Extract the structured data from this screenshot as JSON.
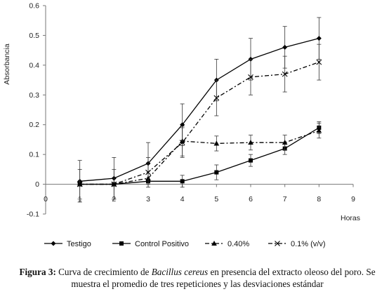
{
  "chart_data": {
    "type": "line",
    "ylabel": "Absorbancia",
    "xlabel": "Horas",
    "xlim": [
      0,
      9
    ],
    "ylim": [
      -0.1,
      0.6
    ],
    "x_ticks": [
      0,
      1,
      2,
      3,
      4,
      5,
      6,
      7,
      8,
      9
    ],
    "x_tick_labels": [
      "0",
      "1",
      "2",
      "3",
      "4",
      "5",
      "6",
      "7",
      "8",
      "9"
    ],
    "y_ticks": [
      -0.1,
      0,
      0.1,
      0.2,
      0.3,
      0.4,
      0.5,
      0.6
    ],
    "y_tick_labels": [
      "-0.1",
      "0",
      "0.1",
      "0.2",
      "0.3",
      "0.4",
      "0.5",
      "0.6"
    ],
    "grid": false,
    "legend_position": "bottom",
    "x": [
      1,
      2,
      3,
      4,
      5,
      6,
      7,
      8
    ],
    "series": [
      {
        "name": "Testigo",
        "marker": "diamond",
        "dash": "solid",
        "values": [
          0.01,
          0.02,
          0.07,
          0.2,
          0.35,
          0.42,
          0.46,
          0.49
        ],
        "errors": [
          0.07,
          0.07,
          0.07,
          0.07,
          0.07,
          0.07,
          0.07,
          0.07
        ]
      },
      {
        "name": "Control Positivo",
        "marker": "square",
        "dash": "solid",
        "values": [
          0.0,
          0.0,
          0.01,
          0.01,
          0.04,
          0.08,
          0.12,
          0.19
        ],
        "errors": [
          0.0,
          0.0,
          0.0,
          0.02,
          0.025,
          0.02,
          0.02,
          0.02
        ]
      },
      {
        "name": "0.40%",
        "marker": "triangle",
        "dash": "dashdot",
        "values": [
          0.0,
          0.0,
          0.02,
          0.145,
          0.137,
          0.14,
          0.14,
          0.18
        ],
        "errors": [
          0.0,
          0.0,
          0.0,
          0.05,
          0.025,
          0.025,
          0.025,
          0.025
        ]
      },
      {
        "name": "0.1% (v/v)",
        "marker": "x",
        "dash": "dashdot",
        "values": [
          0.0,
          0.0,
          0.04,
          0.14,
          0.29,
          0.36,
          0.37,
          0.41
        ],
        "errors": [
          0.05,
          0.05,
          0.05,
          0.05,
          0.06,
          0.06,
          0.06,
          0.06
        ]
      }
    ]
  },
  "caption": {
    "label": "Figura 3:",
    "text_before": " Curva de crecimiento de ",
    "species": "Bacillus cereus",
    "text_after": " en presencia del extracto oleoso del poro. Se muestra el promedio de tres repeticiones y las desviaciones estándar"
  }
}
